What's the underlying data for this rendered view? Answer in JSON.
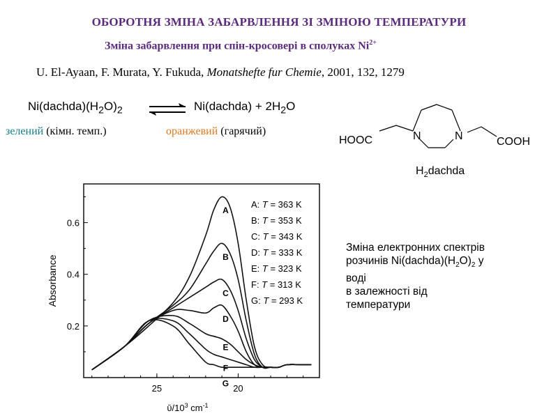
{
  "title": "ОБОРОТНЯ ЗМІНА ЗАБАРВЛЕННЯ ЗІ ЗМІНОЮ ТЕМПЕРАТУРИ",
  "subtitle": {
    "text": "Зміна забарвлення при спін-кросовері в сполуках Ni",
    "sup": "2+"
  },
  "reference": {
    "authors": "U. El-Ayaan, F. Murata, Y. Fukuda, ",
    "journal": "Monatshefte fur Chemie",
    "rest": ", 2001, 132, 1279"
  },
  "equation": {
    "left": {
      "a": "Ni(dachda)(H",
      "sub1": "2",
      "b": "O)",
      "sub2": "2"
    },
    "right": {
      "a": "Ni(dachda) + 2H",
      "sub1": "2",
      "b": "O"
    }
  },
  "color_labels": {
    "green": {
      "word": "зелений",
      "note": " (кімн. темп.)"
    },
    "orange": {
      "word": "оранжевий",
      "note": " (гарячий)"
    }
  },
  "ligand": {
    "left_group": "HOOC",
    "right_group": "COOH",
    "n_left": "N",
    "n_right": "N",
    "name_prefix": "H",
    "name_sub": "2",
    "name_rest": "dachda",
    "colors": {
      "line": "#000000"
    }
  },
  "caption": {
    "line1": "Зміна електронних спектрів",
    "line2a": "розчинів Ni(dachda)(H",
    "line2sub1": "2",
    "line2b": "O)",
    "line2sub2": "2",
    "line2c": " у",
    "line3": "воді",
    "line4": "в залежності від",
    "line5": "температури"
  },
  "chart_data": {
    "type": "line",
    "ylabel": "Absorbance",
    "xlabel_prefix": "ῡ/10",
    "xlabel_sup": "3",
    "xlabel_unit": " cm",
    "xlabel_sup2": "-1",
    "x_ticks": [
      "25",
      "20"
    ],
    "x_tick_values": [
      25,
      20
    ],
    "y_ticks": [
      "0.2",
      "0.4",
      "0.6"
    ],
    "y_tick_values": [
      0.2,
      0.4,
      0.6
    ],
    "xlim": [
      29.5,
      15.0
    ],
    "ylim": [
      0.0,
      0.75
    ],
    "x_reversed": true,
    "legend_position": "top-right",
    "legend": [
      {
        "key": "A",
        "label": "A: T = 363 K",
        "pre": "A: ",
        "t": "T",
        "post": " = 363 K"
      },
      {
        "key": "B",
        "label": "B: T = 353 K",
        "pre": "B: ",
        "t": "T",
        "post": " = 353 K"
      },
      {
        "key": "C",
        "label": "C: T = 343 K",
        "pre": "C: ",
        "t": "T",
        "post": " = 343 K"
      },
      {
        "key": "D",
        "label": "D: T = 333 K",
        "pre": "D: ",
        "t": "T",
        "post": " = 333 K"
      },
      {
        "key": "E",
        "label": "E: T = 323 K",
        "pre": "E: ",
        "t": "T",
        "post": " = 323 K"
      },
      {
        "key": "F",
        "label": "F: T = 313 K",
        "pre": "F: ",
        "t": "T",
        "post": " = 313 K"
      },
      {
        "key": "G",
        "label": "G: T = 293 K",
        "pre": "G: ",
        "t": "T",
        "post": " = 293 K"
      }
    ],
    "series": [
      {
        "name": "A",
        "x": [
          29,
          27,
          25.5,
          24,
          23,
          22,
          21.5,
          21,
          20.5,
          20,
          19.5,
          19,
          18.5,
          18,
          17.5,
          17,
          16,
          15.5
        ],
        "y": [
          0.03,
          0.12,
          0.2,
          0.29,
          0.39,
          0.55,
          0.65,
          0.7,
          0.66,
          0.52,
          0.3,
          0.12,
          0.05,
          0.04,
          0.04,
          0.05,
          0.05,
          0.05
        ]
      },
      {
        "name": "B",
        "x": [
          29,
          27,
          25.5,
          24,
          23,
          22,
          21.5,
          21,
          20.5,
          20,
          19.5,
          19,
          18.5,
          18,
          17.5,
          17,
          16,
          15.5
        ],
        "y": [
          0.03,
          0.12,
          0.21,
          0.28,
          0.34,
          0.44,
          0.49,
          0.52,
          0.48,
          0.38,
          0.22,
          0.09,
          0.04,
          0.04,
          0.04,
          0.05,
          0.05,
          0.05
        ]
      },
      {
        "name": "C",
        "x": [
          29,
          27,
          25.5,
          24,
          23,
          22,
          21.5,
          21,
          20.5,
          20,
          19.5,
          19,
          18.5,
          18,
          17.5,
          17,
          16,
          15.5
        ],
        "y": [
          0.03,
          0.12,
          0.21,
          0.27,
          0.31,
          0.35,
          0.37,
          0.38,
          0.34,
          0.26,
          0.15,
          0.07,
          0.04,
          0.04,
          0.04,
          0.05,
          0.05,
          0.05
        ]
      },
      {
        "name": "D",
        "x": [
          29,
          27,
          25.5,
          24,
          23,
          22,
          21.5,
          21,
          20.5,
          20,
          19.5,
          19,
          18.5,
          18,
          17.5,
          17,
          16,
          15.5
        ],
        "y": [
          0.03,
          0.12,
          0.21,
          0.26,
          0.26,
          0.25,
          0.27,
          0.28,
          0.24,
          0.18,
          0.1,
          0.05,
          0.04,
          0.04,
          0.04,
          0.05,
          0.05,
          0.05
        ]
      },
      {
        "name": "E",
        "x": [
          29,
          27,
          25.5,
          24,
          23,
          22,
          21.5,
          21,
          20.5,
          20,
          19.5,
          19,
          18.5,
          18,
          17.5,
          17,
          16,
          15.5
        ],
        "y": [
          0.03,
          0.12,
          0.22,
          0.24,
          0.21,
          0.17,
          0.16,
          0.15,
          0.13,
          0.1,
          0.07,
          0.05,
          0.04,
          0.04,
          0.04,
          0.05,
          0.05,
          0.05
        ]
      },
      {
        "name": "F",
        "x": [
          29,
          27,
          25.5,
          24,
          23,
          22,
          21.5,
          21,
          20.5,
          20,
          19.5,
          19,
          18.5,
          18,
          17.5,
          17,
          16,
          15.5
        ],
        "y": [
          0.03,
          0.12,
          0.22,
          0.22,
          0.17,
          0.11,
          0.09,
          0.08,
          0.07,
          0.06,
          0.05,
          0.04,
          0.04,
          0.04,
          0.04,
          0.05,
          0.05,
          0.05
        ]
      },
      {
        "name": "G",
        "x": [
          29,
          27,
          25.5,
          24,
          23,
          22,
          21.5,
          21,
          20.5,
          20,
          19.5,
          19,
          18.5,
          18,
          17.5,
          17,
          16,
          15.5
        ],
        "y": [
          0.03,
          0.12,
          0.22,
          0.2,
          0.13,
          0.06,
          0.05,
          0.04,
          0.04,
          0.04,
          0.04,
          0.04,
          0.04,
          0.04,
          0.04,
          0.05,
          0.05,
          0.05
        ]
      }
    ],
    "series_labels": [
      {
        "key": "A",
        "x": 20.9,
        "y": 0.69
      },
      {
        "key": "B",
        "x": 20.9,
        "y": 0.51
      },
      {
        "key": "C",
        "x": 20.9,
        "y": 0.37
      },
      {
        "key": "D",
        "x": 20.9,
        "y": 0.27
      },
      {
        "key": "E",
        "x": 20.9,
        "y": 0.16
      },
      {
        "key": "F",
        "x": 20.9,
        "y": 0.08
      },
      {
        "key": "G",
        "x": 20.9,
        "y": 0.02
      }
    ]
  }
}
